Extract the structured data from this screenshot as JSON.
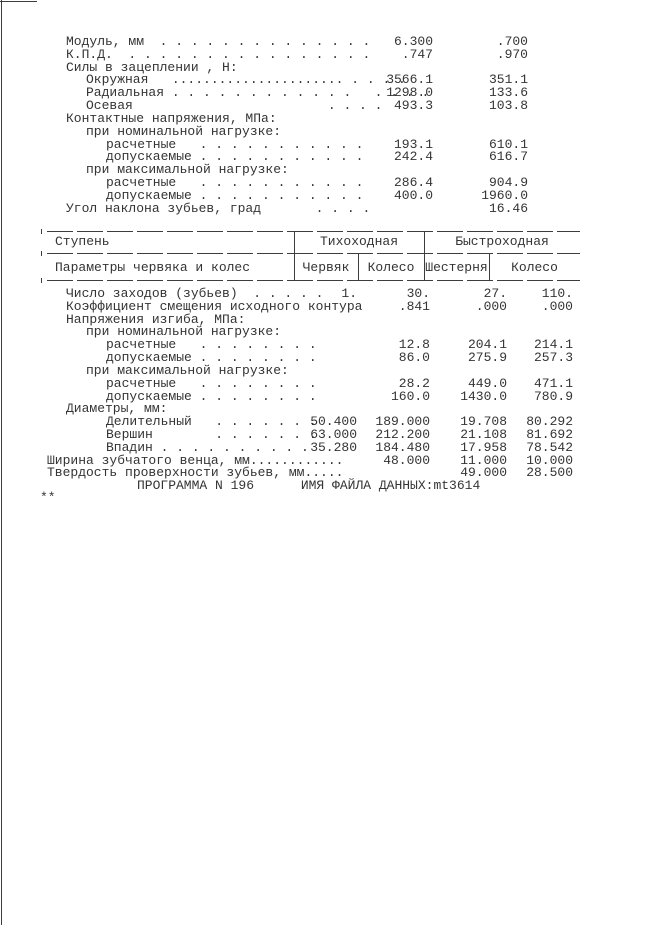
{
  "top_section": {
    "rows": [
      {
        "indent": 1,
        "label": "Модуль, мм",
        "leader": "  . . . . . . . . . . . . . .",
        "v1": "6.300",
        "v2": ".700"
      },
      {
        "indent": 1,
        "label": "К.П.Д.",
        "leader": "  . . . . . . . . . . . . . . . .",
        "v1": ".747",
        "v2": ".970"
      },
      {
        "indent": 1,
        "label": "Силы в зацеплении , Н:",
        "leader": "",
        "v1": "",
        "v2": ""
      },
      {
        "indent": 2,
        "label": "Окружная",
        "leader": "   ...................... . . . .",
        "v1": "3566.1",
        "v2": "351.1"
      },
      {
        "indent": 2,
        "label": "Радиальная",
        "leader": " . . . . . . . . . . . .   . . . .",
        "v1": "1298.0",
        "v2": "133.6"
      },
      {
        "indent": 2,
        "label": "Осевая",
        "leader": "                         . . . .",
        "v1": "493.3",
        "v2": "103.8"
      },
      {
        "indent": 1,
        "label": "Контактные напряжения, МПа:",
        "leader": "",
        "v1": "",
        "v2": ""
      },
      {
        "indent": 2,
        "label": "при номинальной нагрузке:",
        "leader": "",
        "v1": "",
        "v2": ""
      },
      {
        "indent": 3,
        "label": "расчетные",
        "leader": "   . . . . . . . . . . .",
        "v1": "193.1",
        "v2": "610.1"
      },
      {
        "indent": 3,
        "label": "допускаемые",
        "leader": " . . . . . . . . . . .",
        "v1": "242.4",
        "v2": "616.7"
      },
      {
        "indent": 2,
        "label": "при максимальной нагрузке:",
        "leader": "",
        "v1": "",
        "v2": ""
      },
      {
        "indent": 3,
        "label": "расчетные",
        "leader": "   . . . . . . . . . . .",
        "v1": "286.4",
        "v2": "904.9"
      },
      {
        "indent": 3,
        "label": "допускаемые",
        "leader": " . . . . . . . . . . .",
        "v1": "400.0",
        "v2": "1960.0"
      },
      {
        "indent": 1,
        "label": "Угол наклона зубьев, град",
        "leader": "       . . . .",
        "v1": "",
        "v2": "16.46"
      }
    ]
  },
  "table": {
    "header": {
      "stage_label": "Ступень",
      "group_slow": "Тихоходная",
      "group_fast": "Быстроходная",
      "params_label": "Параметры червяка и колес",
      "sub_cols": [
        "Червяк",
        "Колесо",
        "Шестерня",
        "Колесо"
      ]
    },
    "rows": [
      {
        "indent": 1,
        "label": "Число заходов (зубьев)",
        "leader": "  . . . . .",
        "c1": "1.",
        "c2": "30.",
        "c3": "27.",
        "c4": "110."
      },
      {
        "indent": 1,
        "label": "Коэффициент смещения исходного контура",
        "leader": "",
        "c1": "",
        "c2": ".841",
        "c3": ".000",
        "c4": ".000"
      },
      {
        "indent": 1,
        "label": "Напряжения изгиба, МПа:",
        "leader": "",
        "c1": "",
        "c2": "",
        "c3": "",
        "c4": ""
      },
      {
        "indent": 2,
        "label": "при номинальной нагрузке:",
        "leader": "",
        "c1": "",
        "c2": "",
        "c3": "",
        "c4": ""
      },
      {
        "indent": 3,
        "label": "расчетные",
        "leader": "   . . . . . . . .",
        "c1": "",
        "c2": "12.8",
        "c3": "204.1",
        "c4": "214.1"
      },
      {
        "indent": 3,
        "label": "допускаемые",
        "leader": " . . . . . . . .",
        "c1": "",
        "c2": "86.0",
        "c3": "275.9",
        "c4": "257.3"
      },
      {
        "indent": 2,
        "label": "при максимальной нагрузке:",
        "leader": "",
        "c1": "",
        "c2": "",
        "c3": "",
        "c4": ""
      },
      {
        "indent": 3,
        "label": "расчетные",
        "leader": "   . . . . . . . .",
        "c1": "",
        "c2": "28.2",
        "c3": "449.0",
        "c4": "471.1"
      },
      {
        "indent": 3,
        "label": "допускаемые",
        "leader": " . . . . . . . .",
        "c1": "",
        "c2": "160.0",
        "c3": "1430.0",
        "c4": "780.9"
      },
      {
        "indent": 1,
        "label": "Диаметры, мм:",
        "leader": "",
        "c1": "",
        "c2": "",
        "c3": "",
        "c4": ""
      },
      {
        "indent": 3,
        "label": "Делительный",
        "leader": "   . . . . . . .",
        "c1": "50.400",
        "c2": "189.000",
        "c3": "19.708",
        "c4": "80.292"
      },
      {
        "indent": 3,
        "label": "Вершин",
        "leader": "        . . . . . . .",
        "c1": "63.000",
        "c2": "212.200",
        "c3": "21.108",
        "c4": "81.692"
      },
      {
        "indent": 3,
        "label": "Впадин",
        "leader": " . . . . . . . . . .",
        "c1": "35.280",
        "c2": "184.480",
        "c3": "17.958",
        "c4": "78.542"
      },
      {
        "indent": 0,
        "label": "Ширина зубчатого венца, мм............",
        "leader": "",
        "c1": "",
        "c2": "48.000",
        "c3": "11.000",
        "c4": "10.000"
      },
      {
        "indent": 0,
        "label": "Твердость проверхности зубьев, мм.....",
        "leader": "",
        "c1": "",
        "c2": "",
        "c3": "49.000",
        "c4": "28.500"
      }
    ]
  },
  "footer": {
    "program_line": "ПРОГРАММА N 196      ИМЯ ФАЙЛА ДАННЫХ:mt3614",
    "marks": "**"
  }
}
